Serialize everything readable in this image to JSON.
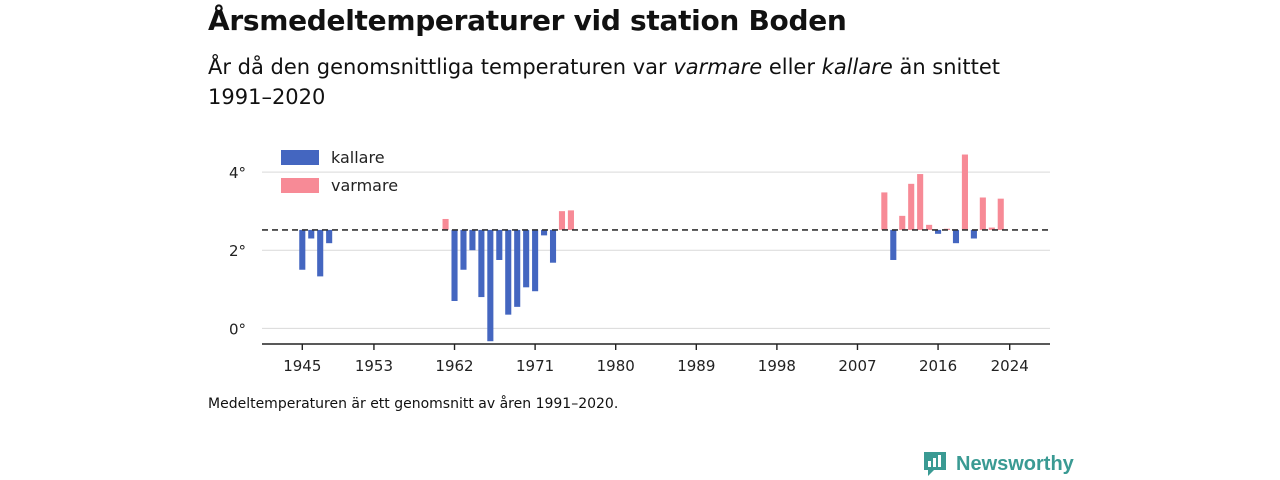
{
  "title": "Årsmedeltemperaturer vid station Boden",
  "subtitle": {
    "part1": "År då den genomsnittliga temperaturen var ",
    "em1": "varmare",
    "part2": " eller ",
    "em2": "kallare",
    "part3": " än snittet 1991–2020"
  },
  "footnote": "Medeltemperaturen är ett genomsnitt av åren 1991–2020.",
  "brand": {
    "name": "Newsworthy",
    "color": "#3a9a93"
  },
  "chart_data": {
    "type": "bar",
    "baseline": 2.52,
    "y_range": [
      -0.35,
      4.95
    ],
    "x_range": [
      1940.5,
      2028.5
    ],
    "y_ticks": [
      {
        "value": 0,
        "label": "0°"
      },
      {
        "value": 2,
        "label": "2°"
      },
      {
        "value": 4,
        "label": "4°"
      }
    ],
    "x_ticks": [
      1945,
      1953,
      1962,
      1971,
      1980,
      1989,
      1998,
      2007,
      2016,
      2024
    ],
    "grid": true,
    "legend_position": "top-left",
    "colors": {
      "kallare": "#4466c0",
      "varmare": "#f78a96"
    },
    "legend": [
      {
        "key": "kallare",
        "label": "kallare"
      },
      {
        "key": "varmare",
        "label": "varmare"
      }
    ],
    "values": [
      {
        "year": 1945,
        "value": 1.5
      },
      {
        "year": 1946,
        "value": 2.3
      },
      {
        "year": 1947,
        "value": 1.33
      },
      {
        "year": 1948,
        "value": 2.18
      },
      {
        "year": 1961,
        "value": 2.8
      },
      {
        "year": 1962,
        "value": 0.7
      },
      {
        "year": 1963,
        "value": 1.5
      },
      {
        "year": 1964,
        "value": 2.0
      },
      {
        "year": 1965,
        "value": 0.8
      },
      {
        "year": 1966,
        "value": -0.33
      },
      {
        "year": 1967,
        "value": 1.75
      },
      {
        "year": 1968,
        "value": 0.35
      },
      {
        "year": 1969,
        "value": 0.55
      },
      {
        "year": 1970,
        "value": 1.05
      },
      {
        "year": 1971,
        "value": 0.95
      },
      {
        "year": 1972,
        "value": 2.38
      },
      {
        "year": 1973,
        "value": 1.68
      },
      {
        "year": 1974,
        "value": 3.0
      },
      {
        "year": 1975,
        "value": 3.02
      },
      {
        "year": 2010,
        "value": 3.48
      },
      {
        "year": 2011,
        "value": 1.75
      },
      {
        "year": 2012,
        "value": 2.88
      },
      {
        "year": 2013,
        "value": 3.7
      },
      {
        "year": 2014,
        "value": 3.95
      },
      {
        "year": 2015,
        "value": 2.65
      },
      {
        "year": 2016,
        "value": 2.42
      },
      {
        "year": 2017,
        "value": 2.55
      },
      {
        "year": 2018,
        "value": 2.18
      },
      {
        "year": 2019,
        "value": 4.45
      },
      {
        "year": 2020,
        "value": 2.3
      },
      {
        "year": 2021,
        "value": 3.35
      },
      {
        "year": 2022,
        "value": 2.58
      },
      {
        "year": 2023,
        "value": 3.32
      }
    ]
  }
}
